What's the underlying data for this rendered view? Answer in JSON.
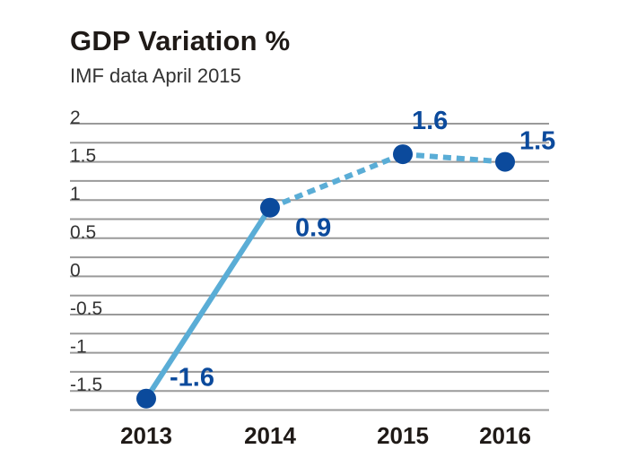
{
  "chart_data": {
    "type": "line",
    "title": "GDP Variation %",
    "subtitle": "IMF data April 2015",
    "xlabel": "",
    "ylabel": "",
    "categories": [
      "2013",
      "2014",
      "2015",
      "2016"
    ],
    "series": [
      {
        "values": [
          -1.6,
          0.9,
          1.6,
          1.5
        ],
        "line_styles": [
          "solid",
          "dotted",
          "dotted"
        ]
      }
    ],
    "data_labels": [
      "-1.6",
      "0.9",
      "1.6",
      "1.5"
    ],
    "y_ticks": [
      "2",
      "1.5",
      "1",
      "0.5",
      "0",
      "-0.5",
      "-1",
      "-1.5"
    ],
    "ylim": [
      -1.75,
      2
    ],
    "grid": true,
    "legend": "none",
    "colors": {
      "line": "#5aadd6",
      "marker": "#0b4a9c",
      "label": "#0b4a9c",
      "grid": "#9a9a9a"
    }
  }
}
